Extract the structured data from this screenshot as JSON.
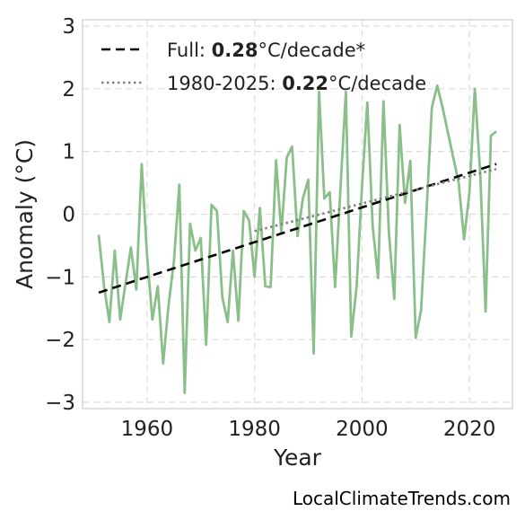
{
  "chart_data": {
    "type": "line",
    "title": "",
    "xlabel": "Year",
    "ylabel": "Anomaly (°C)",
    "xlim": [
      1948,
      2028
    ],
    "ylim": [
      -3.1,
      3.1
    ],
    "xticks": [
      1960,
      1980,
      2000,
      2020
    ],
    "yticks": [
      -3,
      -2,
      -1,
      0,
      1,
      2,
      3
    ],
    "grid": true,
    "legend_position": "top-left",
    "series": [
      {
        "kind": "data",
        "color": "#8abf8a",
        "x": [
          1951,
          1952,
          1953,
          1954,
          1955,
          1956,
          1957,
          1958,
          1959,
          1960,
          1961,
          1962,
          1963,
          1964,
          1965,
          1966,
          1967,
          1968,
          1969,
          1970,
          1971,
          1972,
          1973,
          1974,
          1975,
          1976,
          1977,
          1978,
          1979,
          1980,
          1981,
          1982,
          1983,
          1984,
          1985,
          1986,
          1987,
          1988,
          1989,
          1990,
          1991,
          1992,
          1993,
          1994,
          1995,
          1996,
          1997,
          1998,
          1999,
          2000,
          2001,
          2002,
          2003,
          2004,
          2005,
          2006,
          2007,
          2008,
          2009,
          2010,
          2011,
          2012,
          2013,
          2014,
          2015,
          2016,
          2017,
          2018,
          2019,
          2020,
          2021,
          2022,
          2023,
          2024,
          2025
        ],
        "y": [
          -0.33,
          -1.15,
          -1.72,
          -0.58,
          -1.68,
          -1.1,
          -0.53,
          -1.2,
          0.8,
          -0.65,
          -1.68,
          -1.15,
          -2.38,
          -1.45,
          -0.75,
          0.47,
          -2.85,
          -0.15,
          -0.58,
          -0.38,
          -2.08,
          0.15,
          0.05,
          -1.32,
          -1.72,
          -0.58,
          -1.7,
          0.05,
          -0.1,
          -1.0,
          0.1,
          -1.15,
          -1.16,
          0.86,
          -0.3,
          0.9,
          1.08,
          -0.35,
          0.25,
          0.55,
          -2.22,
          1.95,
          0.25,
          0.35,
          -1.16,
          0.42,
          1.95,
          -1.95,
          -1.15,
          0.45,
          1.78,
          -0.2,
          -1.02,
          1.8,
          -0.28,
          -1.35,
          1.42,
          0.18,
          0.85,
          -1.97,
          -1.53,
          0.03,
          1.7,
          2.05,
          1.7,
          1.3,
          0.9,
          0.5,
          -0.4,
          0.35,
          2.0,
          0.65,
          -1.55,
          1.25,
          1.32
        ]
      },
      {
        "kind": "trend-full",
        "name_prefix": "Full: ",
        "name_value": "0.28",
        "name_suffix": "°C/decade*",
        "color": "#000000",
        "style": "dashed",
        "x": [
          1951,
          2025
        ],
        "y": [
          -1.25,
          0.8
        ]
      },
      {
        "kind": "trend-recent",
        "name_prefix": "1980-2025: ",
        "name_value": "0.22",
        "name_suffix": "°C/decade",
        "color": "#808080",
        "style": "dotted",
        "x": [
          1980,
          2025
        ],
        "y": [
          -0.27,
          0.72
        ]
      }
    ]
  },
  "watermark": "LocalClimateTrends.com"
}
